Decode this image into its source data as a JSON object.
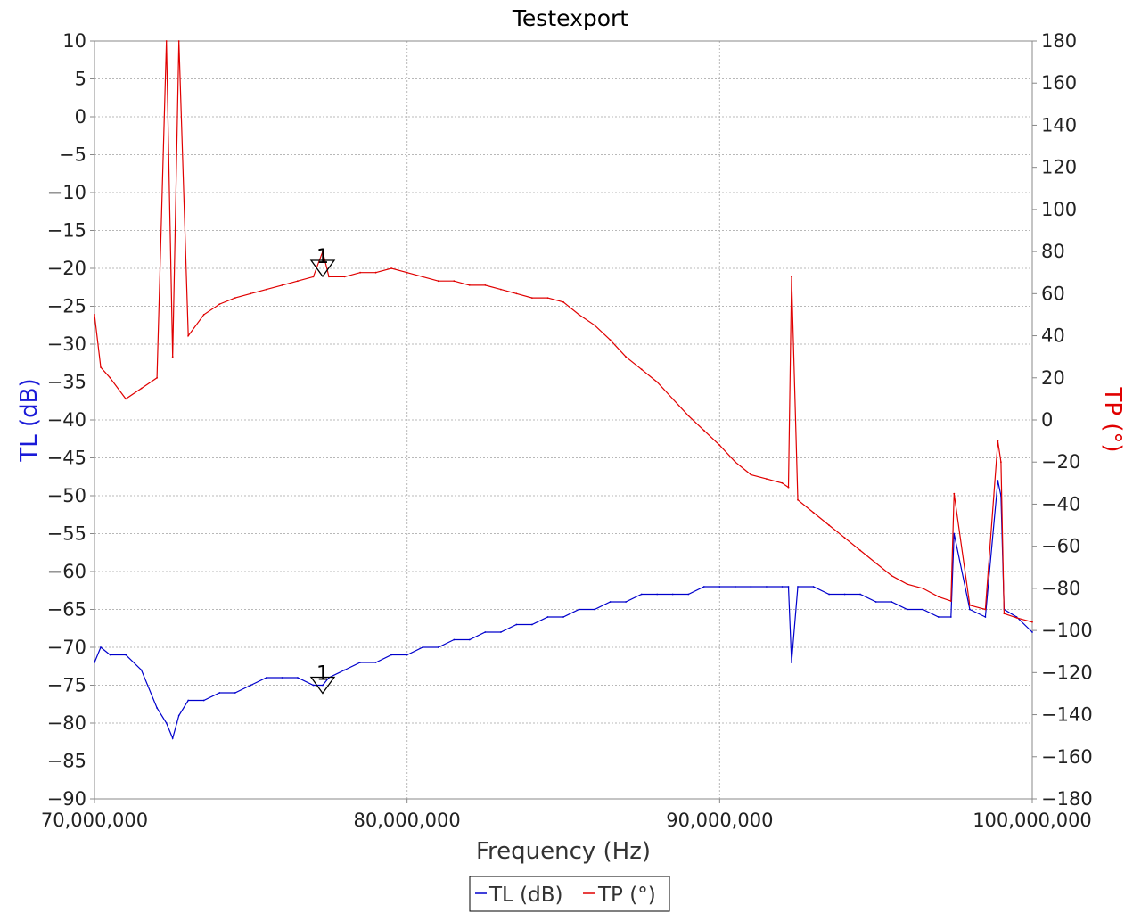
{
  "chart_data": {
    "type": "line",
    "title": "Testexport",
    "xlabel": "Frequency (Hz)",
    "ylabel_left": "TL (dB)",
    "ylabel_right": "TP (°)",
    "xlim": [
      70000000,
      100000000
    ],
    "ylim_left": [
      -90,
      10
    ],
    "ylim_right": [
      -180,
      180
    ],
    "x_ticks": [
      70000000,
      80000000,
      90000000,
      100000000
    ],
    "x_tick_labels": [
      "70,000,000",
      "80,000,000",
      "90,000,000",
      "100,000,000"
    ],
    "y_left_ticks": [
      "10",
      "5",
      "0",
      "-5",
      "-10",
      "-15",
      "-20",
      "-25",
      "-30",
      "-35",
      "-40",
      "-45",
      "-50",
      "-55",
      "-60",
      "-65",
      "-70",
      "-75",
      "-80",
      "-85",
      "-90"
    ],
    "y_right_ticks": [
      "180",
      "160",
      "140",
      "120",
      "100",
      "80",
      "60",
      "40",
      "20",
      "0",
      "-20",
      "-40",
      "-60",
      "-80",
      "-100",
      "-120",
      "-140",
      "-160",
      "-180"
    ],
    "grid": true,
    "legend_position": "bottom-center",
    "series": [
      {
        "name": "TL (dB)",
        "axis": "left",
        "color": "#0000cc",
        "x": [
          70000000,
          70200000,
          70500000,
          71000000,
          71500000,
          72000000,
          72300000,
          72500000,
          72700000,
          73000000,
          73500000,
          74000000,
          74500000,
          75000000,
          75500000,
          76000000,
          76500000,
          77000000,
          77300000,
          77500000,
          78000000,
          78500000,
          79000000,
          79500000,
          80000000,
          80500000,
          81000000,
          81500000,
          82000000,
          82500000,
          83000000,
          83500000,
          84000000,
          84500000,
          85000000,
          85500000,
          86000000,
          86500000,
          87000000,
          87500000,
          88000000,
          88500000,
          89000000,
          89500000,
          90000000,
          90500000,
          91000000,
          91500000,
          92000000,
          92200000,
          92300000,
          92500000,
          93000000,
          93500000,
          94000000,
          94500000,
          95000000,
          95500000,
          96000000,
          96500000,
          97000000,
          97400000,
          97500000,
          98000000,
          98500000,
          98900000,
          99000000,
          99100000,
          99500000,
          100000000
        ],
        "values": [
          -72,
          -70,
          -71,
          -71,
          -73,
          -78,
          -80,
          -82,
          -79,
          -77,
          -77,
          -76,
          -76,
          -75,
          -74,
          -74,
          -74,
          -75,
          -75,
          -74,
          -73,
          -72,
          -72,
          -71,
          -71,
          -70,
          -70,
          -69,
          -69,
          -68,
          -68,
          -67,
          -67,
          -66,
          -66,
          -65,
          -65,
          -64,
          -64,
          -63,
          -63,
          -63,
          -63,
          -62,
          -62,
          -62,
          -62,
          -62,
          -62,
          -62,
          -72,
          -62,
          -62,
          -63,
          -63,
          -63,
          -64,
          -64,
          -65,
          -65,
          -66,
          -66,
          -55,
          -65,
          -66,
          -48,
          -50,
          -65,
          -66,
          -68
        ]
      },
      {
        "name": "TP (°)",
        "axis": "right",
        "color": "#e00000",
        "x": [
          70000000,
          70200000,
          70500000,
          71000000,
          71500000,
          72000000,
          72300000,
          72500000,
          72700000,
          73000000,
          73500000,
          74000000,
          74500000,
          75000000,
          75500000,
          76000000,
          76500000,
          77000000,
          77300000,
          77500000,
          78000000,
          78500000,
          79000000,
          79500000,
          80000000,
          80500000,
          81000000,
          81500000,
          82000000,
          82500000,
          83000000,
          83500000,
          84000000,
          84500000,
          85000000,
          85500000,
          86000000,
          86500000,
          87000000,
          87500000,
          88000000,
          88500000,
          89000000,
          89500000,
          90000000,
          90500000,
          91000000,
          91500000,
          92000000,
          92200000,
          92300000,
          92500000,
          93000000,
          93500000,
          94000000,
          94500000,
          95000000,
          95500000,
          96000000,
          96500000,
          97000000,
          97400000,
          97500000,
          98000000,
          98500000,
          98900000,
          99000000,
          99100000,
          99500000,
          100000000
        ],
        "values": [
          50,
          25,
          20,
          10,
          15,
          20,
          180,
          30,
          180,
          40,
          50,
          55,
          58,
          60,
          62,
          64,
          66,
          68,
          80,
          68,
          68,
          70,
          70,
          72,
          70,
          68,
          66,
          66,
          64,
          64,
          62,
          60,
          58,
          58,
          56,
          50,
          45,
          38,
          30,
          24,
          18,
          10,
          2,
          -5,
          -12,
          -20,
          -26,
          -28,
          -30,
          -32,
          68,
          -38,
          -44,
          -50,
          -56,
          -62,
          -68,
          -74,
          -78,
          -80,
          -84,
          -86,
          -35,
          -88,
          -90,
          -10,
          -20,
          -92,
          -94,
          -96
        ]
      }
    ],
    "markers": [
      {
        "label": "1",
        "x": 77300000,
        "axis": "left",
        "value": -20
      },
      {
        "label": "1",
        "x": 77300000,
        "axis": "left",
        "value": -75
      }
    ]
  }
}
